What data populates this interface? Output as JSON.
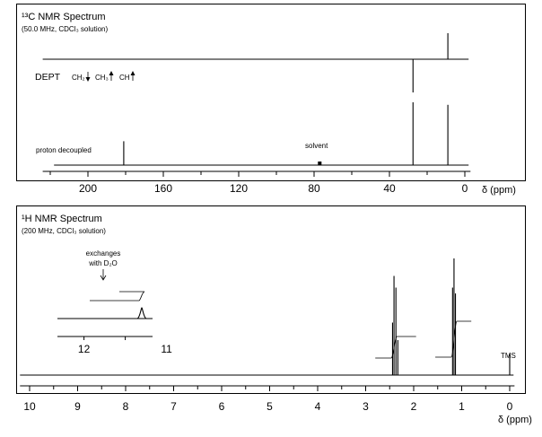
{
  "chart_data": [
    {
      "type": "line",
      "title": "¹³C NMR Spectrum",
      "subtitle": "(50.0 MHz, CDCl₃ solution)",
      "xlabel": "δ (ppm)",
      "xlim": [
        225,
        -5
      ],
      "x_reversed": true,
      "xticks": [
        "200",
        "160",
        "120",
        "80",
        "40",
        "0"
      ],
      "traces": [
        {
          "label": "DEPT",
          "dept_legend": [
            "CH₂",
            "CH₃",
            "CH"
          ],
          "dept_arrows": [
            "down",
            "up",
            "up"
          ],
          "peaks": [
            {
              "x": 27.5,
              "direction": "down",
              "height": 1.0
            },
            {
              "x": 9.0,
              "direction": "up",
              "height": 1.0
            }
          ]
        },
        {
          "label": "proton decoupled",
          "peaks": [
            {
              "x": 181.0,
              "height": 0.38
            },
            {
              "x": 77.0,
              "height": 0.05,
              "label": "solvent"
            },
            {
              "x": 27.5,
              "height": 1.0
            },
            {
              "x": 9.0,
              "height": 0.96
            }
          ]
        }
      ]
    },
    {
      "type": "line",
      "title": "¹H NMR Spectrum",
      "subtitle": "(200 MHz, CDCl₃ solution)",
      "xlabel": "δ (ppm)",
      "xlim": [
        10.2,
        -0.1
      ],
      "x_reversed": true,
      "xticks": [
        "10",
        "9",
        "8",
        "7",
        "6",
        "5",
        "4",
        "3",
        "2",
        "1",
        "0"
      ],
      "peaks": [
        {
          "group": "quartet",
          "x": [
            2.44,
            2.41,
            2.37,
            2.33
          ],
          "height": [
            0.45,
            0.85,
            0.75,
            0.3
          ]
        },
        {
          "group": "triplet",
          "x": [
            1.19,
            1.16,
            1.13
          ],
          "height": [
            0.75,
            1.0,
            0.7
          ]
        },
        {
          "group": "TMS",
          "x": [
            0.0
          ],
          "height": [
            0.18
          ],
          "label": "TMS"
        }
      ],
      "inset": {
        "xticks": [
          "12",
          "11"
        ],
        "annotation": [
          "exchanges",
          "with D₂O"
        ],
        "peak_x": 11.3
      }
    }
  ]
}
